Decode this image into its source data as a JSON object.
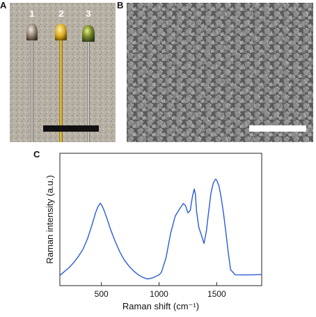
{
  "panels": {
    "a": {
      "letter": "A",
      "rod_labels": [
        "1",
        "2",
        "3"
      ]
    },
    "b": {
      "letter": "B"
    },
    "c": {
      "letter": "C"
    }
  },
  "colors": {
    "spectrum_line": "#2a5bd7",
    "scale_bar_a": "#111111",
    "scale_bar_b": "#ffffff"
  },
  "chart_data": {
    "type": "line",
    "xlabel": "Raman shift (cm⁻¹)",
    "ylabel": "Raman intensity (a.u.)",
    "x_ticks": [
      500,
      1000,
      1500
    ],
    "xlim": [
      140,
      1890
    ],
    "ylim": [
      0,
      1
    ],
    "grid": false,
    "series": [
      {
        "x": [
          140,
          180,
          220,
          260,
          300,
          340,
          380,
          420,
          450,
          470,
          490,
          500,
          520,
          550,
          580,
          620,
          660,
          700,
          740,
          780,
          820,
          860,
          900,
          940,
          980,
          1000,
          1020,
          1060,
          1100,
          1140,
          1180,
          1210,
          1230,
          1250,
          1270,
          1290,
          1305,
          1315,
          1325,
          1345,
          1370,
          1390,
          1410,
          1430,
          1450,
          1470,
          1490,
          1500,
          1520,
          1540,
          1560,
          1580,
          1600,
          1620,
          1660,
          1700,
          1760,
          1820,
          1890
        ],
        "y": [
          0.05,
          0.08,
          0.11,
          0.15,
          0.2,
          0.26,
          0.35,
          0.47,
          0.57,
          0.62,
          0.65,
          0.64,
          0.6,
          0.52,
          0.43,
          0.33,
          0.24,
          0.17,
          0.12,
          0.08,
          0.05,
          0.03,
          0.02,
          0.03,
          0.05,
          0.06,
          0.08,
          0.2,
          0.4,
          0.54,
          0.6,
          0.64,
          0.62,
          0.56,
          0.58,
          0.7,
          0.76,
          0.72,
          0.58,
          0.45,
          0.38,
          0.32,
          0.42,
          0.58,
          0.73,
          0.81,
          0.84,
          0.83,
          0.78,
          0.68,
          0.55,
          0.4,
          0.24,
          0.1,
          0.06,
          0.06,
          0.06,
          0.06,
          0.06
        ]
      }
    ]
  }
}
